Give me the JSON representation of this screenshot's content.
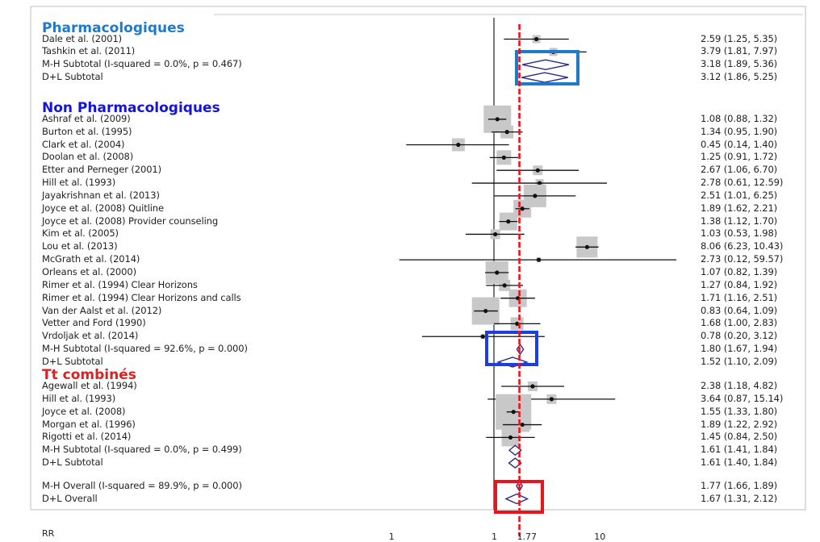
{
  "chart_data": {
    "type": "forest",
    "xlabel": "RR",
    "x_scale": "log",
    "xlim": [
      0.1,
      80
    ],
    "x_ticks": [
      "1",
      "1",
      "1.77",
      "10"
    ],
    "null_line": 1,
    "overall_line": 1.77,
    "sections": [
      {
        "name": "Pharmacologiques",
        "color": "#1f7ac9",
        "studies": [
          {
            "label": "Dale et al. (2001)",
            "rr": 2.59,
            "lo": 1.25,
            "hi": 5.35,
            "ci_text": "2.59 (1.25, 5.35)",
            "kind": "study"
          },
          {
            "label": "Tashkin et al. (2011)",
            "rr": 3.79,
            "lo": 1.81,
            "hi": 7.97,
            "ci_text": "3.79 (1.81, 7.97)",
            "kind": "study"
          },
          {
            "label": "M-H Subtotal  (I-squared = 0.0%, p = 0.467)",
            "rr": 3.18,
            "lo": 1.89,
            "hi": 5.36,
            "ci_text": "3.18 (1.89, 5.36)",
            "kind": "summary"
          },
          {
            "label": "D+L Subtotal",
            "rr": 3.12,
            "lo": 1.86,
            "hi": 5.25,
            "ci_text": "3.12 (1.86, 5.25)",
            "kind": "summary"
          }
        ]
      },
      {
        "name": "Non Pharmacologiques",
        "color": "#1414d6",
        "studies": [
          {
            "label": "Ashraf et al. (2009)",
            "rr": 1.08,
            "lo": 0.88,
            "hi": 1.32,
            "ci_text": "1.08 (0.88, 1.32)",
            "kind": "study"
          },
          {
            "label": "Burton et al. (1995)",
            "rr": 1.34,
            "lo": 0.95,
            "hi": 1.9,
            "ci_text": "1.34 (0.95, 1.90)",
            "kind": "study"
          },
          {
            "label": "Clark et al. (2004)",
            "rr": 0.45,
            "lo": 0.14,
            "hi": 1.4,
            "ci_text": "0.45 (0.14, 1.40)",
            "kind": "study"
          },
          {
            "label": "Doolan et al. (2008)",
            "rr": 1.25,
            "lo": 0.91,
            "hi": 1.72,
            "ci_text": "1.25 (0.91, 1.72)",
            "kind": "study"
          },
          {
            "label": "Etter and Perneger (2001)",
            "rr": 2.67,
            "lo": 1.06,
            "hi": 6.7,
            "ci_text": "2.67 (1.06, 6.70)",
            "kind": "study"
          },
          {
            "label": "Hill et al. (1993)",
            "rr": 2.78,
            "lo": 0.61,
            "hi": 12.59,
            "ci_text": "2.78 (0.61, 12.59)",
            "kind": "study"
          },
          {
            "label": "Jayakrishnan et al. (2013)",
            "rr": 2.51,
            "lo": 1.01,
            "hi": 6.25,
            "ci_text": "2.51 (1.01, 6.25)",
            "kind": "study"
          },
          {
            "label": "Joyce et al. (2008) Quitline",
            "rr": 1.89,
            "lo": 1.62,
            "hi": 2.21,
            "ci_text": "1.89 (1.62, 2.21)",
            "kind": "study"
          },
          {
            "label": "Joyce et al. (2008) Provider counseling",
            "rr": 1.38,
            "lo": 1.12,
            "hi": 1.7,
            "ci_text": "1.38 (1.12, 1.70)",
            "kind": "study"
          },
          {
            "label": "Kim et al. (2005)",
            "rr": 1.03,
            "lo": 0.53,
            "hi": 1.98,
            "ci_text": "1.03 (0.53, 1.98)",
            "kind": "study"
          },
          {
            "label": "Lou et al. (2013)",
            "rr": 8.06,
            "lo": 6.23,
            "hi": 10.43,
            "ci_text": "8.06 (6.23, 10.43)",
            "kind": "study"
          },
          {
            "label": "McGrath et al. (2014)",
            "rr": 2.73,
            "lo": 0.12,
            "hi": 59.57,
            "ci_text": "2.73 (0.12, 59.57)",
            "kind": "study"
          },
          {
            "label": "Orleans et al. (2000)",
            "rr": 1.07,
            "lo": 0.82,
            "hi": 1.39,
            "ci_text": "1.07 (0.82, 1.39)",
            "kind": "study"
          },
          {
            "label": "Rimer et al. (1994) Clear Horizons",
            "rr": 1.27,
            "lo": 0.84,
            "hi": 1.92,
            "ci_text": "1.27 (0.84, 1.92)",
            "kind": "study"
          },
          {
            "label": "Rimer et al. (1994) Clear Horizons and calls",
            "rr": 1.71,
            "lo": 1.16,
            "hi": 2.51,
            "ci_text": "1.71 (1.16, 2.51)",
            "kind": "study"
          },
          {
            "label": "Van der Aalst et al. (2012)",
            "rr": 0.83,
            "lo": 0.64,
            "hi": 1.09,
            "ci_text": "0.83 (0.64, 1.09)",
            "kind": "study"
          },
          {
            "label": "Vetter and Ford (1990)",
            "rr": 1.68,
            "lo": 1.0,
            "hi": 2.83,
            "ci_text": "1.68 (1.00, 2.83)",
            "kind": "study"
          },
          {
            "label": "Vrdoljak et al. (2014)",
            "rr": 0.78,
            "lo": 0.2,
            "hi": 3.12,
            "ci_text": "0.78 (0.20, 3.12)",
            "kind": "study"
          },
          {
            "label": "M-H Subtotal  (I-squared = 92.6%, p = 0.000)",
            "rr": 1.8,
            "lo": 1.67,
            "hi": 1.94,
            "ci_text": "1.80 (1.67, 1.94)",
            "kind": "summary"
          },
          {
            "label": "D+L Subtotal",
            "rr": 1.52,
            "lo": 1.1,
            "hi": 2.09,
            "ci_text": "1.52 (1.10, 2.09)",
            "kind": "summary"
          }
        ]
      },
      {
        "name": "Tt combinés",
        "color": "#e02020",
        "studies": [
          {
            "label": "Agewall et al. (1994)",
            "rr": 2.38,
            "lo": 1.18,
            "hi": 4.82,
            "ci_text": "2.38 (1.18, 4.82)",
            "kind": "study"
          },
          {
            "label": "Hill et al. (1993)",
            "rr": 3.64,
            "lo": 0.87,
            "hi": 15.14,
            "ci_text": "3.64 (0.87, 15.14)",
            "kind": "study"
          },
          {
            "label": "Joyce et al. (2008)",
            "rr": 1.55,
            "lo": 1.33,
            "hi": 1.8,
            "ci_text": "1.55 (1.33, 1.80)",
            "kind": "study"
          },
          {
            "label": "Morgan et al. (1996)",
            "rr": 1.89,
            "lo": 1.22,
            "hi": 2.92,
            "ci_text": "1.89 (1.22, 2.92)",
            "kind": "study"
          },
          {
            "label": "Rigotti et al. (2014)",
            "rr": 1.45,
            "lo": 0.84,
            "hi": 2.5,
            "ci_text": "1.45 (0.84, 2.50)",
            "kind": "study"
          },
          {
            "label": "M-H Subtotal  (I-squared = 0.0%, p = 0.499)",
            "rr": 1.61,
            "lo": 1.41,
            "hi": 1.84,
            "ci_text": "1.61 (1.41, 1.84)",
            "kind": "summary"
          },
          {
            "label": "D+L Subtotal",
            "rr": 1.61,
            "lo": 1.4,
            "hi": 1.84,
            "ci_text": "1.61 (1.40, 1.84)",
            "kind": "summary"
          }
        ]
      }
    ],
    "overall": [
      {
        "label": "M-H Overall  (I-squared = 89.9%, p = 0.000)",
        "rr": 1.77,
        "lo": 1.66,
        "hi": 1.89,
        "ci_text": "1.77 (1.66, 1.89)",
        "kind": "summary"
      },
      {
        "label": "D+L Overall",
        "rr": 1.67,
        "lo": 1.31,
        "hi": 2.12,
        "ci_text": "1.67 (1.31, 2.12)",
        "kind": "summary"
      }
    ],
    "highlight_colors": {
      "pharma_box": "#1f7ac9",
      "nonpharma_box": "#1e3fe0",
      "overall_box": "#e8141e",
      "overall_line": "#e8141e",
      "diamond": "#2a2a8a",
      "weight_square": "#c8c8c8"
    }
  }
}
